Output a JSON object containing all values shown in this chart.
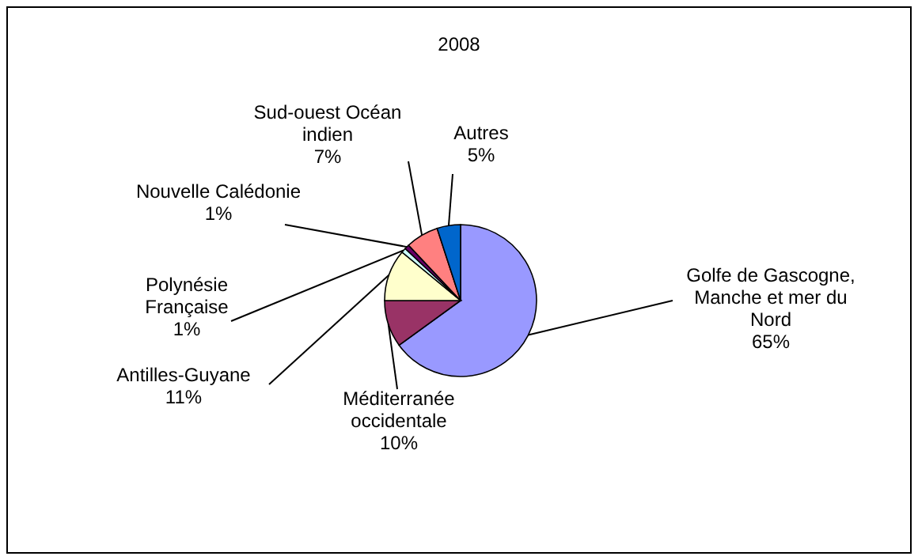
{
  "chart_data": {
    "type": "pie",
    "title": "2008",
    "categories": [
      "Golfe de Gascogne, Manche et mer du Nord",
      "Méditerranée occidentale",
      "Antilles-Guyane",
      "Polynésie Française",
      "Nouvelle Calédonie",
      "Sud-ouest Océan indien",
      "Autres"
    ],
    "values": [
      65,
      10,
      11,
      1,
      1,
      7,
      5
    ],
    "value_labels": [
      "65%",
      "10%",
      "11%",
      "1%",
      "1%",
      "7%",
      "5%"
    ],
    "colors": [
      "#9999ff",
      "#993366",
      "#ffffcc",
      "#ccffff",
      "#660066",
      "#ff8080",
      "#0066cc"
    ]
  }
}
